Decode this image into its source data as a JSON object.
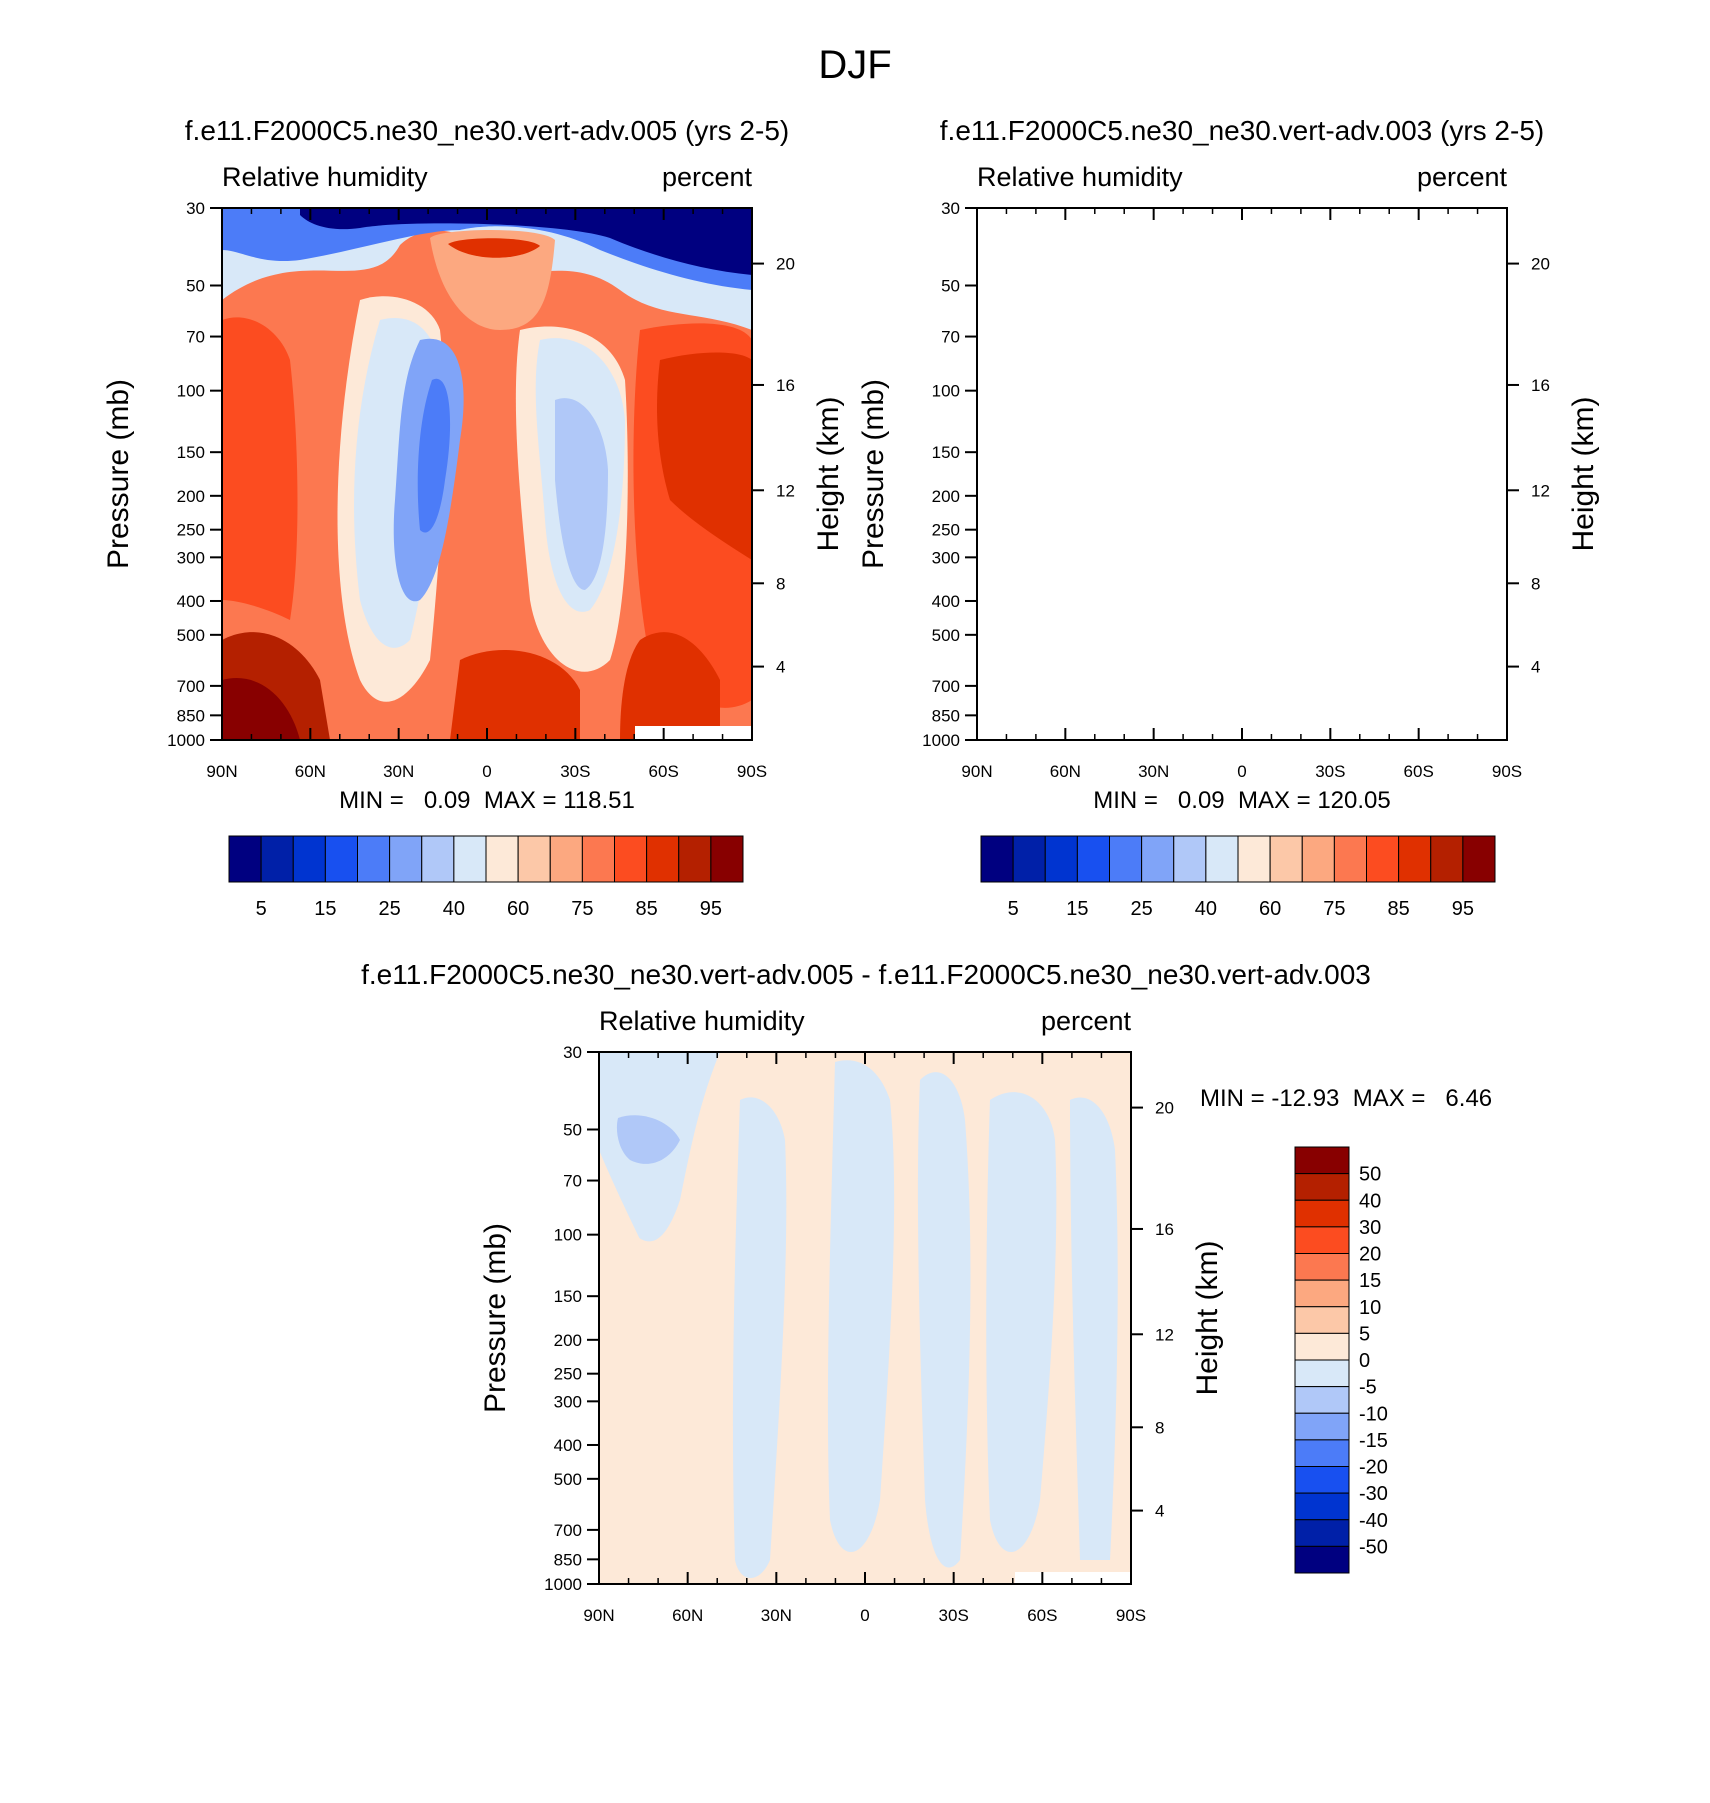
{
  "page_title": "DJF",
  "colors": {
    "rh_levels": [
      "#000080",
      "#0020a8",
      "#0034d0",
      "#1850f0",
      "#4c7cf8",
      "#80a4f8",
      "#b0c8f8",
      "#d8e8f8",
      "#fde9d8",
      "#fcc8a8",
      "#fca880",
      "#fc7850",
      "#fc4c20",
      "#e03000",
      "#b42000",
      "#880000"
    ],
    "diff_levels": [
      "#000080",
      "#0020a8",
      "#0034d0",
      "#1850f0",
      "#4c7cf8",
      "#80a4f8",
      "#b0c8f8",
      "#d8e8f8",
      "#fde9d8",
      "#fcc8a8",
      "#fca880",
      "#fc7850",
      "#fc4c20",
      "#e03000",
      "#b42000",
      "#880000"
    ]
  },
  "chart_data": [
    {
      "type": "heatmap",
      "title": "f.e11.F2000C5.ne30_ne30.vert-adv.005 (yrs 2-5)",
      "variable": "Relative humidity",
      "units": "percent",
      "ylabel": "Pressure (mb)",
      "ylabel_right": "Height (km)",
      "x_tick_labels": [
        "90N",
        "60N",
        "30N",
        "0",
        "30S",
        "60S",
        "90S"
      ],
      "y_tick_labels": [
        "30",
        "50",
        "70",
        "100",
        "150",
        "200",
        "250",
        "300",
        "400",
        "500",
        "700",
        "850",
        "1000"
      ],
      "y2_tick_labels": [
        "20",
        "16",
        "12",
        "8",
        "4"
      ],
      "ylim": [
        1000,
        30
      ],
      "y_scale": "log",
      "min_max_text": "MIN =   0.09  MAX = 118.51",
      "min": 0.09,
      "max": 118.51,
      "colorbar_labels": [
        "5",
        "15",
        "25",
        "40",
        "60",
        "75",
        "85",
        "95"
      ]
    },
    {
      "type": "heatmap",
      "title": "f.e11.F2000C5.ne30_ne30.vert-adv.003 (yrs 2-5)",
      "variable": "Relative humidity",
      "units": "percent",
      "ylabel": "Pressure (mb)",
      "ylabel_right": "Height (km)",
      "x_tick_labels": [
        "90N",
        "60N",
        "30N",
        "0",
        "30S",
        "60S",
        "90S"
      ],
      "y_tick_labels": [
        "30",
        "50",
        "70",
        "100",
        "150",
        "200",
        "250",
        "300",
        "400",
        "500",
        "700",
        "850",
        "1000"
      ],
      "y2_tick_labels": [
        "20",
        "16",
        "12",
        "8",
        "4"
      ],
      "ylim": [
        1000,
        30
      ],
      "y_scale": "log",
      "min_max_text": "MIN =   0.09  MAX = 120.05",
      "min": 0.09,
      "max": 120.05,
      "colorbar_labels": [
        "5",
        "15",
        "25",
        "40",
        "60",
        "75",
        "85",
        "95"
      ]
    },
    {
      "type": "heatmap",
      "title": "f.e11.F2000C5.ne30_ne30.vert-adv.005 - f.e11.F2000C5.ne30_ne30.vert-adv.003",
      "variable": "Relative humidity",
      "units": "percent",
      "ylabel": "Pressure (mb)",
      "ylabel_right": "Height (km)",
      "x_tick_labels": [
        "90N",
        "60N",
        "30N",
        "0",
        "30S",
        "60S",
        "90S"
      ],
      "y_tick_labels": [
        "30",
        "50",
        "70",
        "100",
        "150",
        "200",
        "250",
        "300",
        "400",
        "500",
        "700",
        "850",
        "1000"
      ],
      "y2_tick_labels": [
        "20",
        "16",
        "12",
        "8",
        "4"
      ],
      "ylim": [
        1000,
        30
      ],
      "y_scale": "log",
      "min_max_text": "MIN = -12.93  MAX =   6.46",
      "min": -12.93,
      "max": 6.46,
      "colorbar_labels": [
        "50",
        "40",
        "30",
        "20",
        "15",
        "10",
        "5",
        "0",
        "-5",
        "-10",
        "-15",
        "-20",
        "-30",
        "-40",
        "-50"
      ]
    }
  ]
}
